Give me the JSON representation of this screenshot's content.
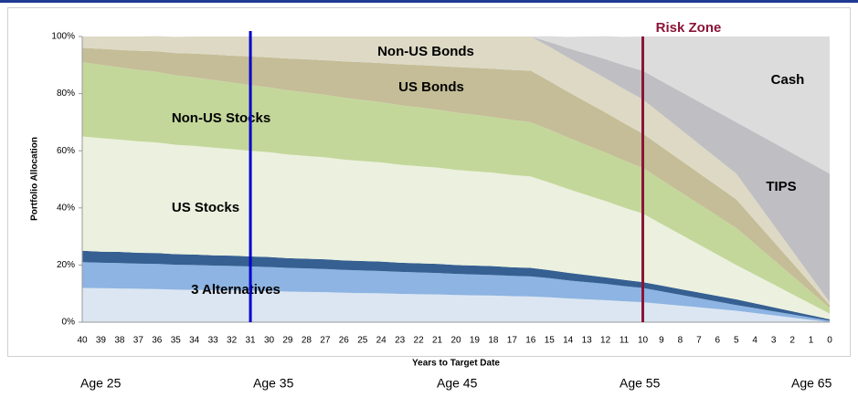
{
  "chart_data": {
    "type": "stacked_area",
    "y_axis_label": "Portfolio Allocation",
    "x_axis_label": "Years to Target Date",
    "categories": [
      40,
      39,
      38,
      37,
      36,
      35,
      34,
      33,
      32,
      31,
      30,
      29,
      28,
      27,
      26,
      25,
      24,
      23,
      22,
      21,
      20,
      19,
      18,
      17,
      16,
      15,
      14,
      13,
      12,
      11,
      10,
      9,
      8,
      7,
      6,
      5,
      4,
      3,
      2,
      1,
      0
    ],
    "x_sublabels": [
      "Age 25",
      "Age 35",
      "Age 45",
      "Age 55",
      "Age 65"
    ],
    "ylim": [
      0,
      100
    ],
    "yticks": [
      {
        "value": 0,
        "label": "0%"
      },
      {
        "value": 20,
        "label": "20%"
      },
      {
        "value": 40,
        "label": "40%"
      },
      {
        "value": 60,
        "label": "60%"
      },
      {
        "value": 80,
        "label": "80%"
      },
      {
        "value": 100,
        "label": "100%"
      }
    ],
    "annotations": [
      "3 Alternatives"
    ],
    "vlines": [
      {
        "at": 31,
        "color": "#0000cc"
      },
      {
        "at": 10,
        "label": "Risk Zone",
        "color": "#8b1538"
      }
    ],
    "series": [
      {
        "color": "#dce6f2",
        "values": [
          12,
          11.9,
          11.8,
          11.7,
          11.6,
          11.4,
          11.3,
          11.2,
          11.1,
          11,
          10.9,
          10.7,
          10.6,
          10.5,
          10.3,
          10.2,
          10.1,
          9.9,
          9.8,
          9.7,
          9.5,
          9.4,
          9.3,
          9.1,
          9,
          8.7,
          8.3,
          8,
          7.7,
          7.3,
          7,
          6.4,
          5.8,
          5.2,
          4.6,
          4,
          3.2,
          2.4,
          1.6,
          0.8,
          0
        ]
      },
      {
        "color": "#8db4e2",
        "values": [
          9,
          8.9,
          8.9,
          8.8,
          8.8,
          8.7,
          8.7,
          8.6,
          8.6,
          8.5,
          8.4,
          8.3,
          8.2,
          8.1,
          8,
          7.9,
          7.8,
          7.7,
          7.6,
          7.5,
          7.4,
          7.3,
          7.2,
          7.1,
          7,
          6.7,
          6.3,
          6,
          5.7,
          5.3,
          5,
          4.4,
          3.8,
          3.2,
          2.6,
          2,
          1.7,
          1.4,
          1.1,
          0.8,
          0.5
        ]
      },
      {
        "color": "#366092",
        "values": [
          4,
          3.9,
          3.9,
          3.8,
          3.8,
          3.7,
          3.7,
          3.6,
          3.6,
          3.5,
          3.5,
          3.4,
          3.4,
          3.4,
          3.3,
          3.3,
          3.3,
          3.2,
          3.2,
          3.2,
          3.1,
          3.1,
          3.1,
          3,
          3,
          2.8,
          2.7,
          2.5,
          2.3,
          2.2,
          2,
          2,
          2,
          2,
          2,
          2,
          1.7,
          1.4,
          1.1,
          0.8,
          0.5
        ]
      },
      {
        "name": "US Stocks",
        "color": "#ebf1de",
        "values": [
          40,
          39.7,
          39.3,
          39,
          38.7,
          38.3,
          38,
          37.7,
          37.3,
          37,
          36.7,
          36.3,
          36,
          35.7,
          35.3,
          35,
          34.7,
          34.3,
          34,
          33.7,
          33.3,
          33,
          32.7,
          32.3,
          32,
          30.7,
          29.3,
          28,
          26.7,
          25.3,
          24,
          21.6,
          19.2,
          16.8,
          14.4,
          12,
          10,
          8,
          6,
          4,
          2
        ]
      },
      {
        "name": "Non-US Stocks",
        "color": "#c4d79b",
        "values": [
          26,
          25.7,
          25.3,
          25,
          24.7,
          24.3,
          24,
          23.7,
          23.3,
          23,
          22.7,
          22.5,
          22.2,
          21.9,
          21.7,
          21.4,
          21.1,
          20.9,
          20.6,
          20.3,
          20.1,
          19.8,
          19.5,
          19.3,
          19,
          18.5,
          18,
          17.5,
          17,
          16.5,
          16,
          15.4,
          14.8,
          14.2,
          13.6,
          13,
          10.8,
          8.6,
          6.4,
          4.2,
          2
        ]
      },
      {
        "name": "US Bonds",
        "color": "#c4bd97",
        "values": [
          5,
          5.6,
          6.1,
          6.7,
          7.2,
          7.8,
          8.3,
          8.9,
          9.4,
          10,
          10.5,
          11.1,
          11.6,
          12.1,
          12.7,
          13.2,
          13.7,
          14.3,
          14.8,
          15.3,
          15.9,
          16.4,
          16.9,
          17.5,
          18,
          17,
          16,
          15,
          14,
          13,
          12,
          11.6,
          11.2,
          10.8,
          10.4,
          10,
          8.2,
          6.4,
          4.6,
          2.8,
          1
        ]
      },
      {
        "name": "Non-US Bonds",
        "color": "#ddd9c4",
        "values": [
          4,
          4.3,
          4.7,
          5,
          5.3,
          5.7,
          6,
          6.3,
          6.7,
          7,
          7.3,
          7.7,
          8,
          8.3,
          8.7,
          9,
          9.3,
          9.7,
          10,
          10.3,
          10.7,
          11,
          11.3,
          11.7,
          12,
          12,
          12,
          12,
          12,
          12,
          12,
          11.4,
          10.8,
          10.2,
          9.6,
          9,
          7.4,
          5.8,
          4.2,
          2.6,
          1
        ]
      },
      {
        "name": "TIPS",
        "color": "#bfbfc3",
        "values": [
          0,
          0,
          0,
          0,
          0,
          0,
          0,
          0,
          0,
          0,
          0,
          0,
          0,
          0,
          0,
          0,
          0,
          0,
          0,
          0,
          0,
          0,
          0,
          0,
          0,
          1.7,
          3.3,
          5,
          6.7,
          8.3,
          10,
          11.6,
          13.2,
          14.8,
          16.4,
          18,
          23.4,
          28.8,
          34.2,
          39.6,
          45
        ]
      },
      {
        "name": "Cash",
        "color": "#dcdcdc",
        "values": [
          0,
          0,
          0,
          0,
          0,
          0,
          0,
          0,
          0,
          0,
          0,
          0,
          0,
          0,
          0,
          0,
          0,
          0,
          0,
          0,
          0,
          0,
          0,
          0,
          0,
          2,
          4,
          6,
          8,
          10,
          12,
          15.6,
          19.2,
          22.8,
          26.4,
          30,
          33.6,
          37.2,
          40.8,
          44.4,
          48
        ]
      }
    ]
  }
}
